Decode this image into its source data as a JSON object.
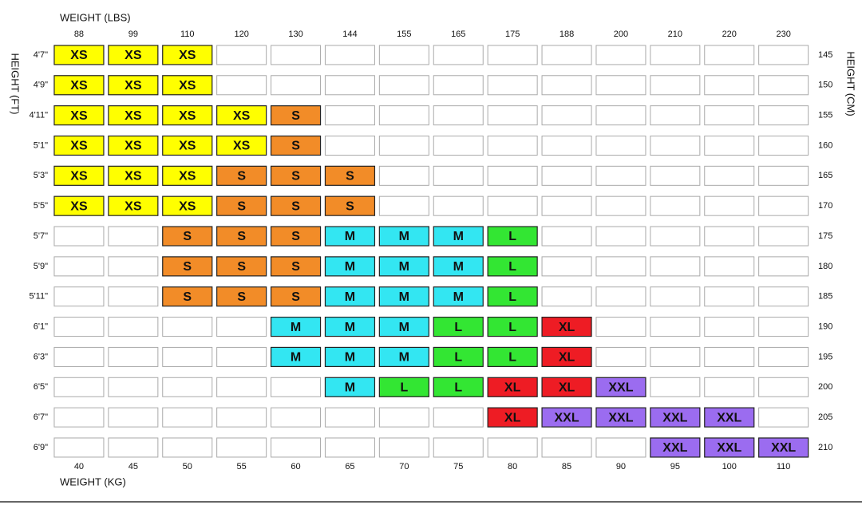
{
  "axis_labels": {
    "top": "WEIGHT (LBS)",
    "bottom": "WEIGHT (KG)",
    "left": "HEIGHT (FT)",
    "right": "HEIGHT (CM)"
  },
  "weights_lbs": [
    88,
    99,
    110,
    120,
    130,
    144,
    155,
    165,
    175,
    188,
    200,
    210,
    220,
    230
  ],
  "weights_kg": [
    40,
    45,
    50,
    55,
    60,
    65,
    70,
    75,
    80,
    85,
    90,
    95,
    100,
    110
  ],
  "heights_ft": [
    "4'7\"",
    "4'9\"",
    "4'11\"",
    "5'1\"",
    "5'3\"",
    "5'5\"",
    "5'7\"",
    "5'9\"",
    "5'11\"",
    "6'1\"",
    "6'3\"",
    "6'5\"",
    "6'7\"",
    "6'9\""
  ],
  "heights_cm": [
    145,
    150,
    155,
    160,
    165,
    170,
    175,
    180,
    185,
    190,
    195,
    200,
    205,
    210
  ],
  "size_colors": {
    "XS": "#ffff00",
    "S": "#f28c28",
    "M": "#33e6f2",
    "L": "#33e633",
    "XL": "#ee1c24",
    "XXL": "#9b6cf0"
  },
  "grid": [
    [
      "XS",
      "XS",
      "XS",
      null,
      null,
      null,
      null,
      null,
      null,
      null,
      null,
      null,
      null,
      null
    ],
    [
      "XS",
      "XS",
      "XS",
      null,
      null,
      null,
      null,
      null,
      null,
      null,
      null,
      null,
      null,
      null
    ],
    [
      "XS",
      "XS",
      "XS",
      "XS",
      "S",
      null,
      null,
      null,
      null,
      null,
      null,
      null,
      null,
      null
    ],
    [
      "XS",
      "XS",
      "XS",
      "XS",
      "S",
      null,
      null,
      null,
      null,
      null,
      null,
      null,
      null,
      null
    ],
    [
      "XS",
      "XS",
      "XS",
      "S",
      "S",
      "S",
      null,
      null,
      null,
      null,
      null,
      null,
      null,
      null
    ],
    [
      "XS",
      "XS",
      "XS",
      "S",
      "S",
      "S",
      null,
      null,
      null,
      null,
      null,
      null,
      null,
      null
    ],
    [
      null,
      null,
      "S",
      "S",
      "S",
      "M",
      "M",
      "M",
      "L",
      null,
      null,
      null,
      null,
      null
    ],
    [
      null,
      null,
      "S",
      "S",
      "S",
      "M",
      "M",
      "M",
      "L",
      null,
      null,
      null,
      null,
      null
    ],
    [
      null,
      null,
      "S",
      "S",
      "S",
      "M",
      "M",
      "M",
      "L",
      null,
      null,
      null,
      null,
      null
    ],
    [
      null,
      null,
      null,
      null,
      "M",
      "M",
      "M",
      "L",
      "L",
      "XL",
      null,
      null,
      null,
      null
    ],
    [
      null,
      null,
      null,
      null,
      "M",
      "M",
      "M",
      "L",
      "L",
      "XL",
      null,
      null,
      null,
      null
    ],
    [
      null,
      null,
      null,
      null,
      null,
      "M",
      "L",
      "L",
      "XL",
      "XL",
      "XXL",
      null,
      null,
      null
    ],
    [
      null,
      null,
      null,
      null,
      null,
      null,
      null,
      null,
      "XL",
      "XXL",
      "XXL",
      "XXL",
      "XXL",
      null
    ],
    [
      null,
      null,
      null,
      null,
      null,
      null,
      null,
      null,
      null,
      null,
      null,
      "XXL",
      "XXL",
      "XXL"
    ]
  ]
}
